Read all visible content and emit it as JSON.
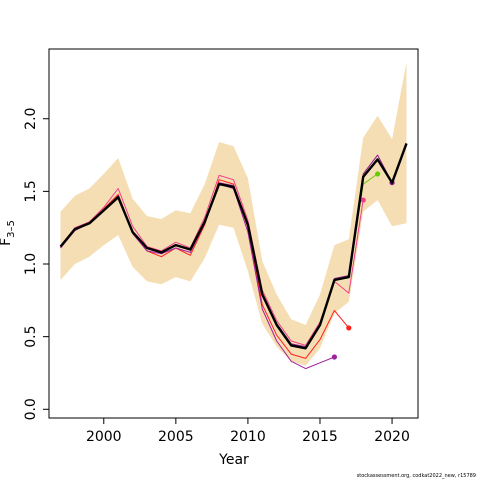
{
  "chart_data": {
    "type": "line",
    "xlabel": "Year",
    "ylabel": "F",
    "ylabel_sub": "3–5",
    "credit": "stockassessment.org, codkat2022_new, r15789",
    "xlim": [
      1996.2,
      2021.8
    ],
    "ylim": [
      -0.06,
      2.48
    ],
    "x_ticks": [
      2000,
      2005,
      2010,
      2015,
      2020
    ],
    "y_ticks": [
      0.0,
      0.5,
      1.0,
      1.5,
      2.0
    ],
    "y_tick_labels": [
      "0.0",
      "0.5",
      "1.0",
      "1.5",
      "2.0"
    ],
    "x_tick_labels": [
      "2000",
      "2005",
      "2010",
      "2015",
      "2020"
    ],
    "band_color": "#f5deb3",
    "band": {
      "x": [
        1997,
        1998,
        1999,
        2000,
        2001,
        2002,
        2003,
        2004,
        2005,
        2006,
        2007,
        2008,
        2009,
        2010,
        2011,
        2012,
        2013,
        2014,
        2015,
        2016,
        2017,
        2018,
        2019,
        2020,
        2021
      ],
      "lower": [
        0.89,
        1.0,
        1.05,
        1.13,
        1.2,
        0.98,
        0.88,
        0.86,
        0.91,
        0.88,
        1.04,
        1.27,
        1.25,
        0.95,
        0.59,
        0.43,
        0.33,
        0.3,
        0.42,
        0.66,
        0.74,
        1.36,
        1.44,
        1.26,
        1.28
      ],
      "upper": [
        1.36,
        1.47,
        1.52,
        1.62,
        1.73,
        1.45,
        1.33,
        1.31,
        1.37,
        1.35,
        1.55,
        1.84,
        1.81,
        1.59,
        1.02,
        0.79,
        0.62,
        0.58,
        0.79,
        1.13,
        1.17,
        1.87,
        2.02,
        1.86,
        2.39
      ]
    },
    "series": [
      {
        "color": "#000000",
        "width": 2.4,
        "x": [
          1997,
          1998,
          1999,
          2000,
          2001,
          2002,
          2003,
          2004,
          2005,
          2006,
          2007,
          2008,
          2009,
          2010,
          2011,
          2012,
          2013,
          2014,
          2015,
          2016,
          2017,
          2018,
          2019,
          2020,
          2021
        ],
        "y": [
          1.12,
          1.24,
          1.28,
          1.37,
          1.46,
          1.22,
          1.11,
          1.08,
          1.13,
          1.1,
          1.29,
          1.55,
          1.53,
          1.27,
          0.79,
          0.58,
          0.44,
          0.42,
          0.58,
          0.89,
          0.91,
          1.6,
          1.72,
          1.56,
          1.83
        ]
      },
      {
        "color": "#f0408a",
        "width": 1,
        "x": [
          1997,
          1998,
          1999,
          2000,
          2001,
          2002,
          2003,
          2004,
          2005,
          2006,
          2007,
          2008,
          2009,
          2010,
          2011,
          2012,
          2013,
          2014,
          2015,
          2016,
          2017,
          2018
        ],
        "y": [
          1.12,
          1.25,
          1.29,
          1.39,
          1.52,
          1.26,
          1.12,
          1.09,
          1.15,
          1.11,
          1.32,
          1.61,
          1.58,
          1.3,
          0.82,
          0.61,
          0.47,
          0.44,
          0.6,
          0.88,
          0.8,
          1.44
        ],
        "end_marker": true
      },
      {
        "color": "#ff2020",
        "width": 1,
        "x": [
          1997,
          1998,
          1999,
          2000,
          2001,
          2002,
          2003,
          2004,
          2005,
          2006,
          2007,
          2008,
          2009,
          2010,
          2011,
          2012,
          2013,
          2014,
          2015,
          2016,
          2017
        ],
        "y": [
          1.11,
          1.24,
          1.28,
          1.38,
          1.48,
          1.22,
          1.09,
          1.05,
          1.11,
          1.06,
          1.27,
          1.58,
          1.55,
          1.25,
          0.72,
          0.51,
          0.38,
          0.35,
          0.48,
          0.68,
          0.56
        ],
        "end_marker": true
      },
      {
        "color": "#a020a0",
        "width": 1,
        "x": [
          1997,
          1998,
          1999,
          2000,
          2001,
          2002,
          2003,
          2004,
          2005,
          2006,
          2007,
          2008,
          2009,
          2010,
          2011,
          2012,
          2013,
          2014,
          2015,
          2016
        ],
        "y": [
          1.11,
          1.23,
          1.28,
          1.37,
          1.46,
          1.21,
          1.09,
          1.07,
          1.11,
          1.08,
          1.28,
          1.55,
          1.52,
          1.22,
          0.69,
          0.47,
          0.33,
          0.28,
          0.32,
          0.36
        ],
        "end_marker": true
      },
      {
        "color": "#66cc00",
        "width": 1,
        "x": [
          1997,
          1998,
          1999,
          2000,
          2001,
          2002,
          2003,
          2004,
          2005,
          2006,
          2007,
          2008,
          2009,
          2010,
          2011,
          2012,
          2013,
          2014,
          2015,
          2016,
          2017,
          2018,
          2019
        ],
        "y": [
          1.12,
          1.24,
          1.28,
          1.37,
          1.46,
          1.22,
          1.11,
          1.08,
          1.13,
          1.1,
          1.29,
          1.55,
          1.53,
          1.27,
          0.79,
          0.58,
          0.44,
          0.42,
          0.58,
          0.89,
          0.91,
          1.55,
          1.62
        ],
        "end_marker": true
      },
      {
        "color": "#8b1a8b",
        "width": 1,
        "x": [
          1997,
          1998,
          1999,
          2000,
          2001,
          2002,
          2003,
          2004,
          2005,
          2006,
          2007,
          2008,
          2009,
          2010,
          2011,
          2012,
          2013,
          2014,
          2015,
          2016,
          2017,
          2018,
          2019,
          2020
        ],
        "y": [
          1.12,
          1.24,
          1.28,
          1.37,
          1.47,
          1.22,
          1.11,
          1.08,
          1.13,
          1.1,
          1.29,
          1.56,
          1.54,
          1.27,
          0.8,
          0.59,
          0.45,
          0.43,
          0.59,
          0.9,
          0.92,
          1.62,
          1.75,
          1.56
        ],
        "end_marker": true
      }
    ]
  }
}
